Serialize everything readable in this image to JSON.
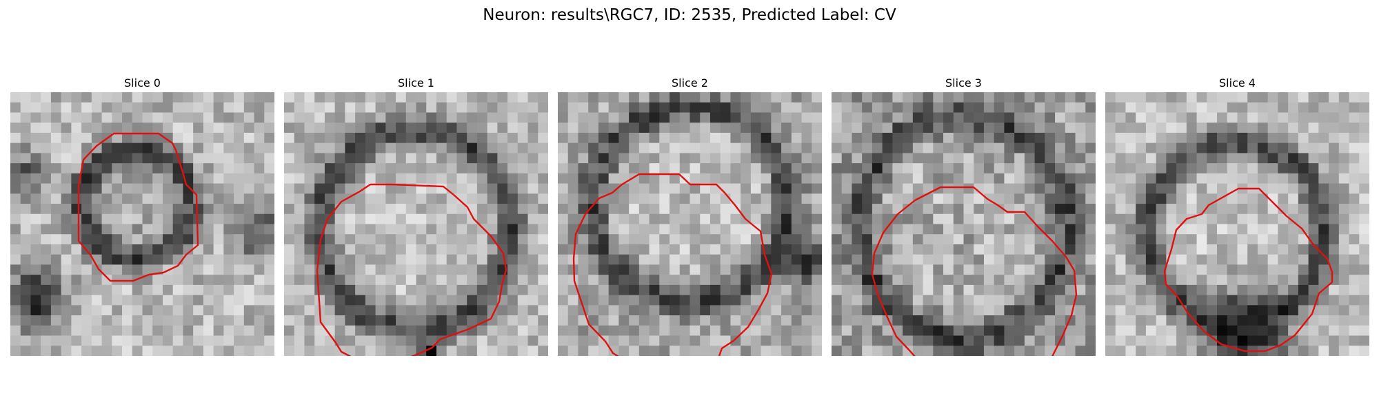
{
  "figure": {
    "title": "Neuron: results\\RGC7, ID: 2535, Predicted Label: CV"
  },
  "panels": [
    {
      "title": "Slice 0"
    },
    {
      "title": "Slice 1"
    },
    {
      "title": "Slice 2"
    },
    {
      "title": "Slice 3"
    },
    {
      "title": "Slice 4"
    }
  ],
  "colors": {
    "contour": "#e01010",
    "background": "#ffffff"
  }
}
